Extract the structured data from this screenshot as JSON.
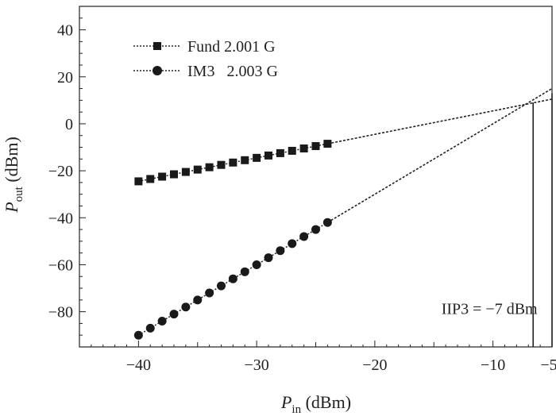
{
  "chart_data": {
    "type": "line",
    "xlabel": {
      "main": "P",
      "sub": "in",
      "unit": " (dBm)"
    },
    "ylabel": {
      "main": "P",
      "sub": "out",
      "unit": " (dBm)"
    },
    "xlim": [
      -45,
      -5
    ],
    "ylim": [
      -95,
      50
    ],
    "x_ticks": [
      -40,
      -30,
      -20,
      -10,
      -5
    ],
    "x_tick_labels": [
      "−40",
      "−30",
      "−20",
      "−10",
      "−5"
    ],
    "y_ticks": [
      40,
      20,
      0,
      -20,
      -40,
      -60,
      -80
    ],
    "y_tick_labels": [
      "40",
      "20",
      "0",
      "−20",
      "−40",
      "−60",
      "−80"
    ],
    "grid": false,
    "legend_position": "top-left",
    "series": [
      {
        "name": "Fund 2.001 G",
        "marker": "square",
        "x": [
          -40,
          -39,
          -38,
          -37,
          -36,
          -35,
          -34,
          -33,
          -32,
          -31,
          -30,
          -29,
          -28,
          -27,
          -26,
          -25,
          -24
        ],
        "y": [
          -24.5,
          -23.5,
          -22.5,
          -21.5,
          -20.5,
          -19.5,
          -18.5,
          -17.5,
          -16.5,
          -15.5,
          -14.5,
          -13.5,
          -12.5,
          -11.5,
          -10.5,
          -9.5,
          -8.5
        ],
        "extrapolation": {
          "x": [
            -24,
            -5
          ],
          "y": [
            -8.5,
            10.5
          ]
        }
      },
      {
        "name": "IM3   2.003 G",
        "marker": "circle",
        "x": [
          -40,
          -39,
          -38,
          -37,
          -36,
          -35,
          -34,
          -33,
          -32,
          -31,
          -30,
          -29,
          -28,
          -27,
          -26,
          -25,
          -24
        ],
        "y": [
          -90,
          -87,
          -84,
          -81,
          -78,
          -75,
          -72,
          -69,
          -66,
          -63,
          -60,
          -57,
          -54,
          -51,
          -48,
          -45,
          -42
        ],
        "extrapolation": {
          "x": [
            -24,
            -5
          ],
          "y": [
            -42,
            15
          ]
        }
      }
    ],
    "vertical_lines": [
      {
        "x": -6.6,
        "y_from": -95,
        "y_to": 9
      },
      {
        "x": -5,
        "y_from": -95,
        "y_to": 13
      }
    ],
    "annotations": [
      {
        "text": "IIP3 = −7 dBm",
        "x": -10.3,
        "y": -81
      }
    ]
  }
}
